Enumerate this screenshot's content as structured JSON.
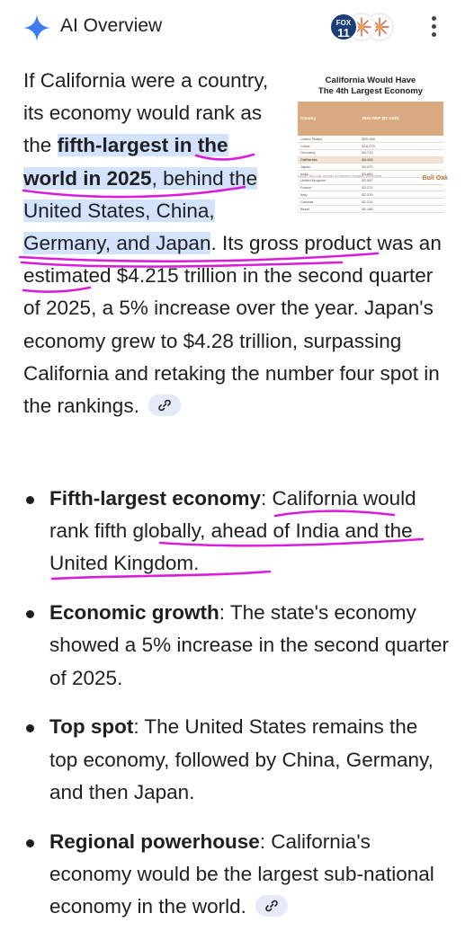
{
  "header": {
    "title": "AI Overview",
    "source_badge": [
      "FOX",
      "11"
    ]
  },
  "thumbnail": {
    "title_line1": "California Would Have",
    "title_line2": "The 4th Largest Economy",
    "col1": "Country",
    "col2": "2024 GDP ($T USD)",
    "rows": [
      [
        "United States",
        "$29.168"
      ],
      [
        "China",
        "$18.273"
      ],
      [
        "Germany",
        "$4.710"
      ],
      [
        "California",
        "$4.103"
      ],
      [
        "Japan",
        "$4.070"
      ],
      [
        "India",
        "$3.889"
      ],
      [
        "United Kingdom",
        "$3.587"
      ],
      [
        "France",
        "$3.174"
      ],
      [
        "Italy",
        "$2.376"
      ],
      [
        "Canada",
        "$2.214"
      ],
      [
        "Brazil",
        "$2.188"
      ]
    ],
    "source_note": "Source: Bull Oak, Bureau of Economic Analysis, World Bank",
    "brand": "Bull Oak"
  },
  "overview": {
    "p1": "If California were a country, its economy would rank as the ",
    "p1_highlight": "fifth-largest in the world in 2025",
    "p2": ", behind the ",
    "p2_highlight": "United States, China, Germany, and Japan",
    "p3": ". Its gross product was an estimated $4.215 trillion in the second quarter of 2025, a 5% increase over the year. Japan's economy grew to $4.28 trillion, surpassing California and retaking the number four spot in the rankings."
  },
  "bullets": [
    {
      "title": "Fifth-largest economy",
      "text": ": California would rank fifth globally, ahead of India and the United Kingdom."
    },
    {
      "title": "Economic growth",
      "text": ": The state's economy showed a 5% increase in the second quarter of 2025."
    },
    {
      "title": "Top spot",
      "text": ": The United States remains the top economy, followed by China, Germany, and then Japan."
    },
    {
      "title": "Regional powerhouse",
      "text": ": California's economy would be the largest sub-national economy in the world."
    }
  ],
  "colors": {
    "highlight": "#d3e3fd",
    "annotation_ink": "#d81ed8",
    "link_chip": "#e3eaf8"
  }
}
